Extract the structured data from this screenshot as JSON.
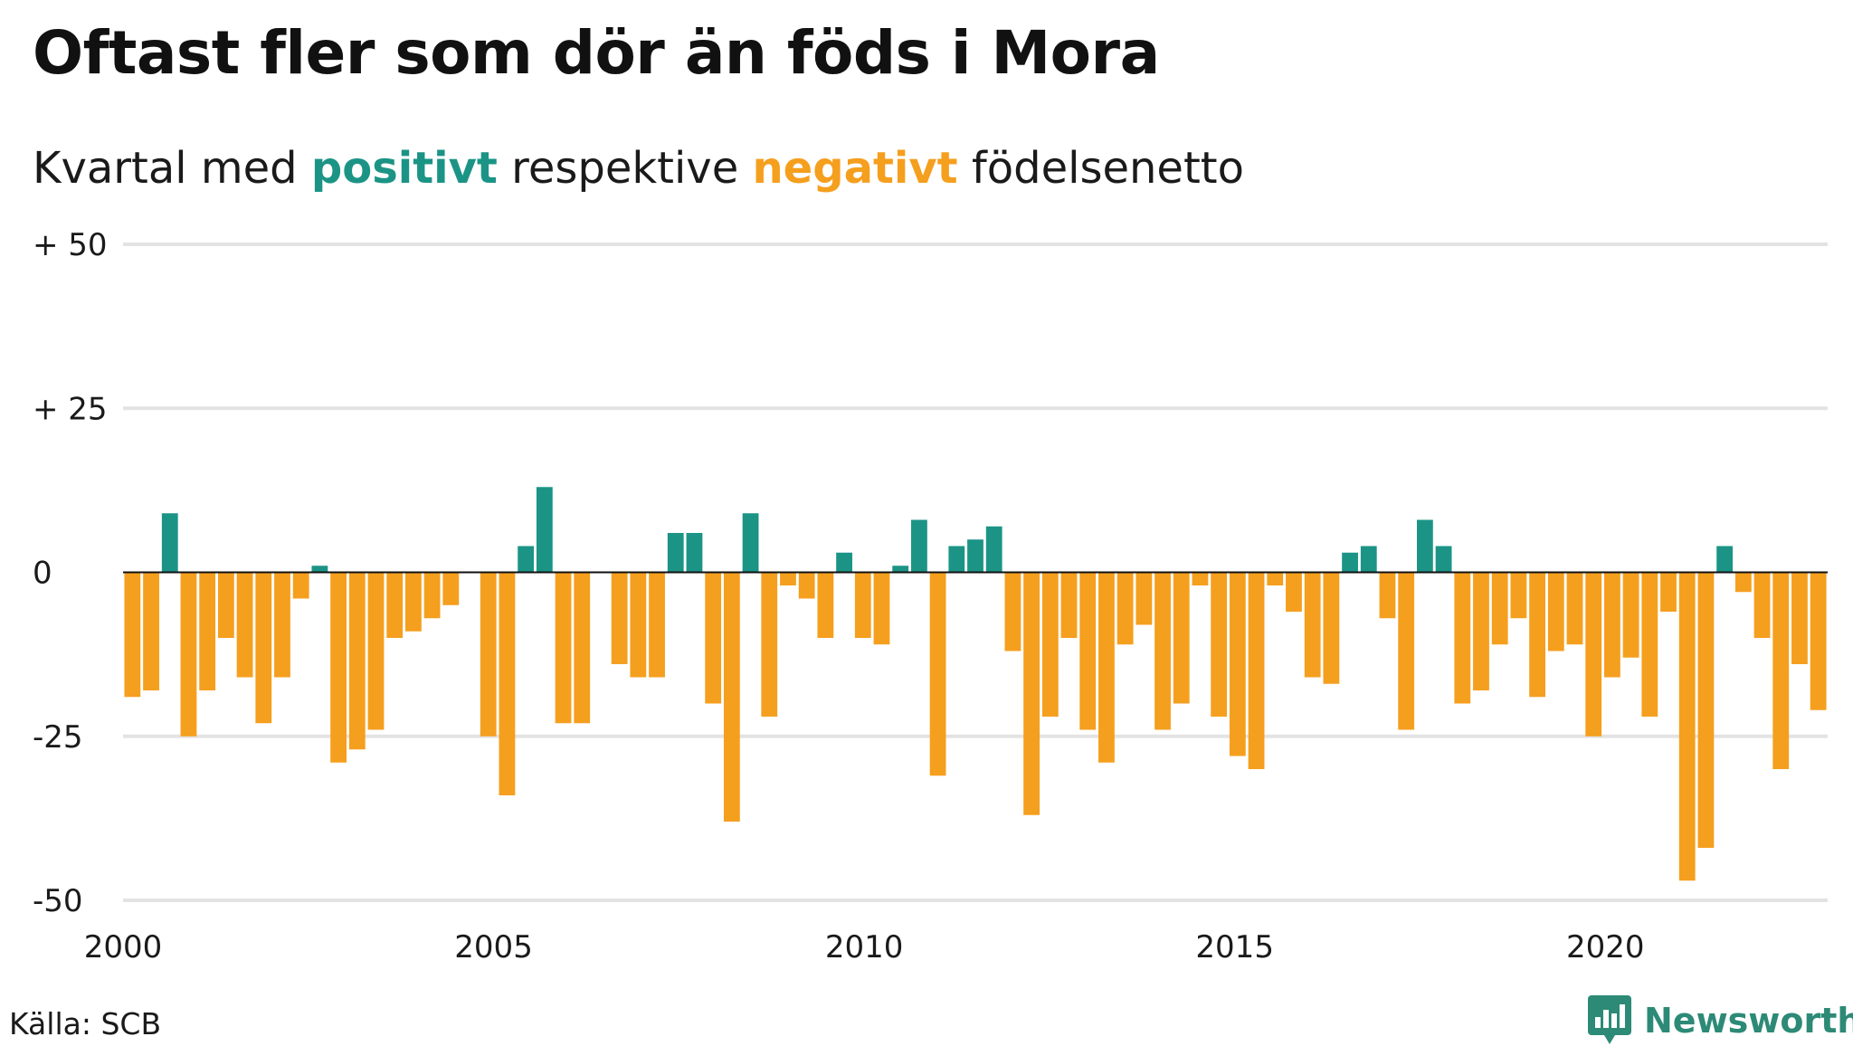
{
  "header": {
    "title": "Oftast fler som dör än föds i Mora",
    "subtitle_prefix": "Kvartal med ",
    "subtitle_positive": "positivt",
    "subtitle_middle": " respektive ",
    "subtitle_negative": "negativt",
    "subtitle_suffix": " födelsenetto"
  },
  "footer": {
    "source": "Källa: SCB",
    "brand": "Newsworthy",
    "brand_icon": "newsworthy-logo-icon"
  },
  "colors": {
    "positive": "#1b9486",
    "negative": "#f59f1e",
    "grid": "#e3e3e3",
    "zero_line": "#111111",
    "brand": "#2c8a76"
  },
  "chart_data": {
    "type": "bar",
    "title": "Oftast fler som dör än föds i Mora",
    "subtitle": "Kvartal med positivt respektive negativt födelsenetto",
    "xlabel": "",
    "ylabel": "",
    "ylim": [
      -50,
      50
    ],
    "xlim": [
      2000.0,
      2023.0
    ],
    "yticks": [
      50,
      25,
      0,
      -25,
      -50
    ],
    "ytick_labels": [
      "+ 50",
      "+ 25",
      "0",
      "-25",
      "-50"
    ],
    "xticks": [
      2000,
      2005,
      2010,
      2015,
      2020
    ],
    "xtick_labels": [
      "2000",
      "2005",
      "2010",
      "2015",
      "2020"
    ],
    "grid": true,
    "legend": "none",
    "quarter_start": "2000 Q1",
    "values": [
      -19,
      -18,
      9,
      -25,
      -18,
      -10,
      -16,
      -23,
      -16,
      -4,
      1,
      -29,
      -27,
      -24,
      -10,
      -9,
      -7,
      -5,
      0,
      -25,
      -34,
      4,
      13,
      -23,
      -23,
      0,
      -14,
      -16,
      -16,
      6,
      6,
      -20,
      -38,
      9,
      -22,
      -2,
      -4,
      -10,
      3,
      -10,
      -11,
      1,
      8,
      -31,
      4,
      5,
      7,
      -12,
      -37,
      -22,
      -10,
      -24,
      -29,
      -11,
      -8,
      -24,
      -20,
      -2,
      -22,
      -28,
      -30,
      -2,
      -6,
      -16,
      -17,
      3,
      4,
      -7,
      -24,
      8,
      4,
      -20,
      -18,
      -11,
      -7,
      -19,
      -12,
      -11,
      -25,
      -16,
      -13,
      -22,
      -6,
      -47,
      -42,
      4,
      -3,
      -10,
      -30,
      -14,
      -21
    ]
  }
}
